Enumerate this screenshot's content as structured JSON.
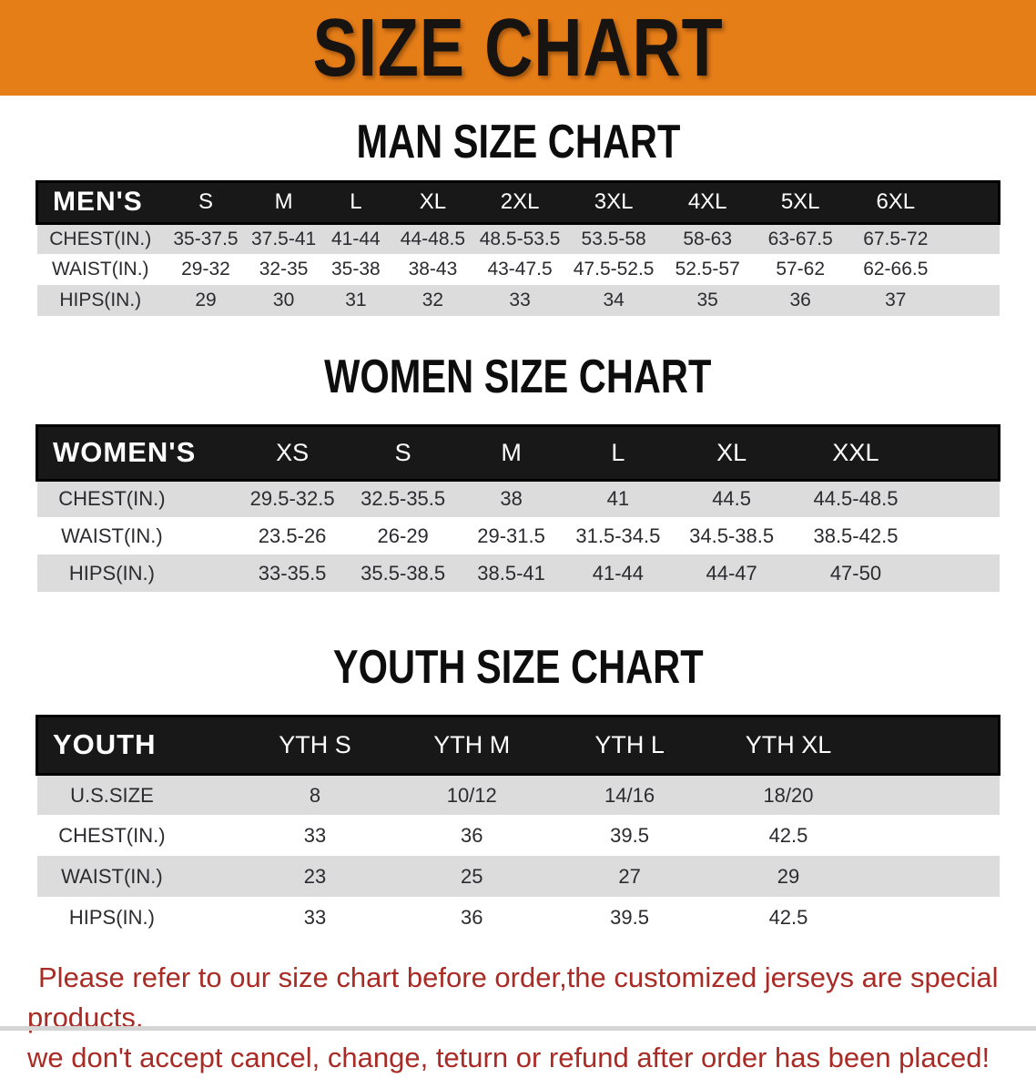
{
  "banner": {
    "title": "SIZE CHART"
  },
  "men": {
    "section_title": "MAN SIZE CHART",
    "corner_label": "MEN'S",
    "sizes": [
      "S",
      "M",
      "L",
      "XL",
      "2XL",
      "3XL",
      "4XL",
      "5XL",
      "6XL"
    ],
    "rows": [
      {
        "label": "CHEST(IN.)",
        "values": [
          "35-37.5",
          "37.5-41",
          "41-44",
          "44-48.5",
          "48.5-53.5",
          "53.5-58",
          "58-63",
          "63-67.5",
          "67.5-72"
        ]
      },
      {
        "label": "WAIST(IN.)",
        "values": [
          "29-32",
          "32-35",
          "35-38",
          "38-43",
          "43-47.5",
          "47.5-52.5",
          "52.5-57",
          "57-62",
          "62-66.5"
        ]
      },
      {
        "label": "HIPS(IN.)",
        "values": [
          "29",
          "30",
          "31",
          "32",
          "33",
          "34",
          "35",
          "36",
          "37"
        ]
      }
    ]
  },
  "women": {
    "section_title": "WOMEN SIZE CHART",
    "corner_label": "WOMEN'S",
    "sizes": [
      "XS",
      "S",
      "M",
      "L",
      "XL",
      "XXL"
    ],
    "rows": [
      {
        "label": "CHEST(IN.)",
        "values": [
          "29.5-32.5",
          "32.5-35.5",
          "38",
          "41",
          "44.5",
          "44.5-48.5"
        ]
      },
      {
        "label": "WAIST(IN.)",
        "values": [
          "23.5-26",
          "26-29",
          "29-31.5",
          "31.5-34.5",
          "34.5-38.5",
          "38.5-42.5"
        ]
      },
      {
        "label": "HIPS(IN.)",
        "values": [
          "33-35.5",
          "35.5-38.5",
          "38.5-41",
          "41-44",
          "44-47",
          "47-50"
        ]
      }
    ]
  },
  "youth": {
    "section_title": "YOUTH SIZE CHART",
    "corner_label": "YOUTH",
    "sizes": [
      "YTH S",
      "YTH M",
      "YTH L",
      "YTH XL"
    ],
    "rows": [
      {
        "label": "U.S.SIZE",
        "values": [
          "8",
          "10/12",
          "14/16",
          "18/20"
        ]
      },
      {
        "label": "CHEST(IN.)",
        "values": [
          "33",
          "36",
          "39.5",
          "42.5"
        ]
      },
      {
        "label": "WAIST(IN.)",
        "values": [
          "23",
          "25",
          "27",
          "29"
        ]
      },
      {
        "label": "HIPS(IN.)",
        "values": [
          "33",
          "36",
          "39.5",
          "42.5"
        ]
      }
    ]
  },
  "footer": {
    "line1": "Please refer to our size chart before order,the customized jerseys are special products,",
    "line2": "we don't accept cancel, change, teturn or refund after order has been placed!"
  },
  "colors": {
    "banner_orange": "#E67E18",
    "header_black": "#181818",
    "row_gray": "#DCDCDC",
    "footer_red": "#A92B25",
    "title_ink": "#0D0D0D"
  }
}
